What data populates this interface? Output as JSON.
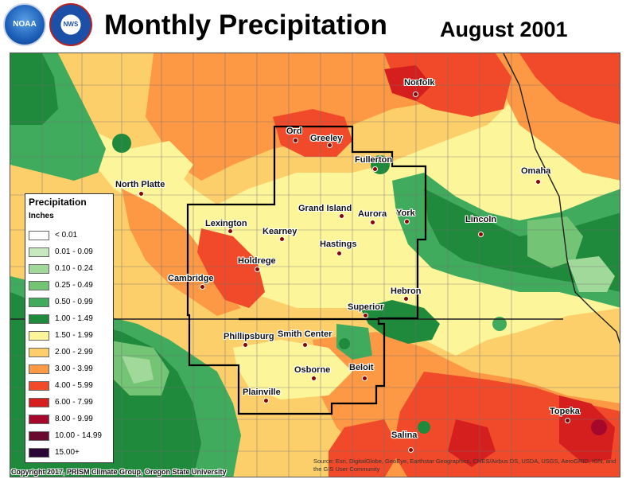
{
  "header": {
    "title": "Monthly Precipitation",
    "date": "August 2001",
    "logos": [
      {
        "icon": "noaa-logo-icon",
        "text": "NOAA"
      },
      {
        "icon": "nws-logo-icon",
        "text": "NWS"
      }
    ]
  },
  "legend": {
    "title": "Precipitation",
    "unit": "Inches",
    "classes": [
      {
        "label": "< 0.01",
        "color": "#ffffff"
      },
      {
        "label": "0.01 - 0.09",
        "color": "#c7e9c0"
      },
      {
        "label": "0.10 - 0.24",
        "color": "#a1d99b"
      },
      {
        "label": "0.25 - 0.49",
        "color": "#74c476"
      },
      {
        "label": "0.50 - 0.99",
        "color": "#41ab5d"
      },
      {
        "label": "1.00 - 1.49",
        "color": "#1f8a3c"
      },
      {
        "label": "1.50 - 1.99",
        "color": "#fdf59a"
      },
      {
        "label": "2.00 - 2.99",
        "color": "#fdcf6b"
      },
      {
        "label": "3.00 - 3.99",
        "color": "#fd9845"
      },
      {
        "label": "4.00 - 5.99",
        "color": "#f14a2a"
      },
      {
        "label": "6.00 - 7.99",
        "color": "#d51e1e"
      },
      {
        "label": "8.00 - 9.99",
        "color": "#a5082b"
      },
      {
        "label": "10.00 - 14.99",
        "color": "#6a0a2e"
      },
      {
        "label": "15.00+",
        "color": "#2a0636"
      }
    ]
  },
  "cities": [
    {
      "name": "Norfolk"
    },
    {
      "name": "Ord"
    },
    {
      "name": "Greeley"
    },
    {
      "name": "Fullerton"
    },
    {
      "name": "Omaha"
    },
    {
      "name": "North Platte"
    },
    {
      "name": "Grand Island"
    },
    {
      "name": "Aurora"
    },
    {
      "name": "York"
    },
    {
      "name": "Lincoln"
    },
    {
      "name": "Lexington"
    },
    {
      "name": "Kearney"
    },
    {
      "name": "Hastings"
    },
    {
      "name": "Holdrege"
    },
    {
      "name": "Cambridge"
    },
    {
      "name": "Hebron"
    },
    {
      "name": "Superior"
    },
    {
      "name": "Phillipsburg"
    },
    {
      "name": "Smith Center"
    },
    {
      "name": "Osborne"
    },
    {
      "name": "Beloit"
    },
    {
      "name": "Plainville"
    },
    {
      "name": "Topeka"
    },
    {
      "name": "Salina"
    }
  ],
  "footer": {
    "copyright": "Copyright 2017, PRISM Climate Group, Oregon State University",
    "source": "Source: Esri, DigitalGlobe, GeoEye, Earthstar Geographics, CNES/Airbus DS, USDA, USGS, AeroGRID, IGN, and the GIS User Community"
  }
}
